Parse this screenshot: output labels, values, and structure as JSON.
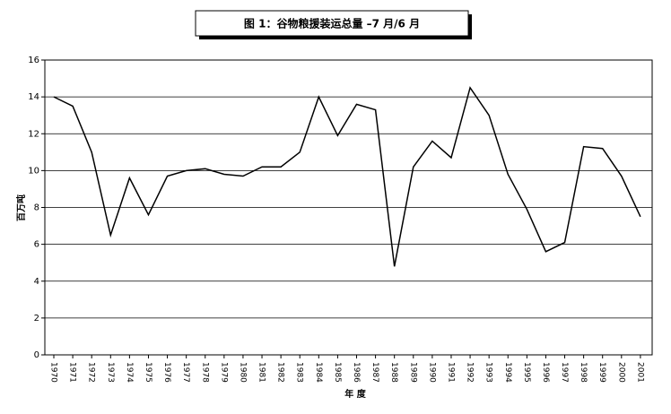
{
  "chart_data": {
    "type": "line",
    "title": "图 1：谷物粮援装运总量 –7 月/6 月",
    "y_label": "百万吨",
    "x_label": "年 度",
    "categories": [
      "1970",
      "1971",
      "1972",
      "1973",
      "1974",
      "1975",
      "1976",
      "1977",
      "1978",
      "1979",
      "1980",
      "1981",
      "1982",
      "1983",
      "1984",
      "1985",
      "1986",
      "1987",
      "1988",
      "1989",
      "1990",
      "1991",
      "1992",
      "1993",
      "1994",
      "1995",
      "1996",
      "1997",
      "1998",
      "1999",
      "2000",
      "2001"
    ],
    "values": [
      14.0,
      13.5,
      11.0,
      6.5,
      9.6,
      7.6,
      9.7,
      10.0,
      10.1,
      9.8,
      9.7,
      10.2,
      10.2,
      11.0,
      14.0,
      11.9,
      13.6,
      13.3,
      4.8,
      10.2,
      11.6,
      10.7,
      14.5,
      13.0,
      9.8,
      7.9,
      5.6,
      6.1,
      11.3,
      11.2,
      9.7,
      7.5
    ],
    "color": "#000000",
    "ylim": [
      0,
      16
    ],
    "yticks": [
      0,
      2,
      4,
      6,
      8,
      10,
      12,
      14,
      16
    ],
    "grid": true
  }
}
